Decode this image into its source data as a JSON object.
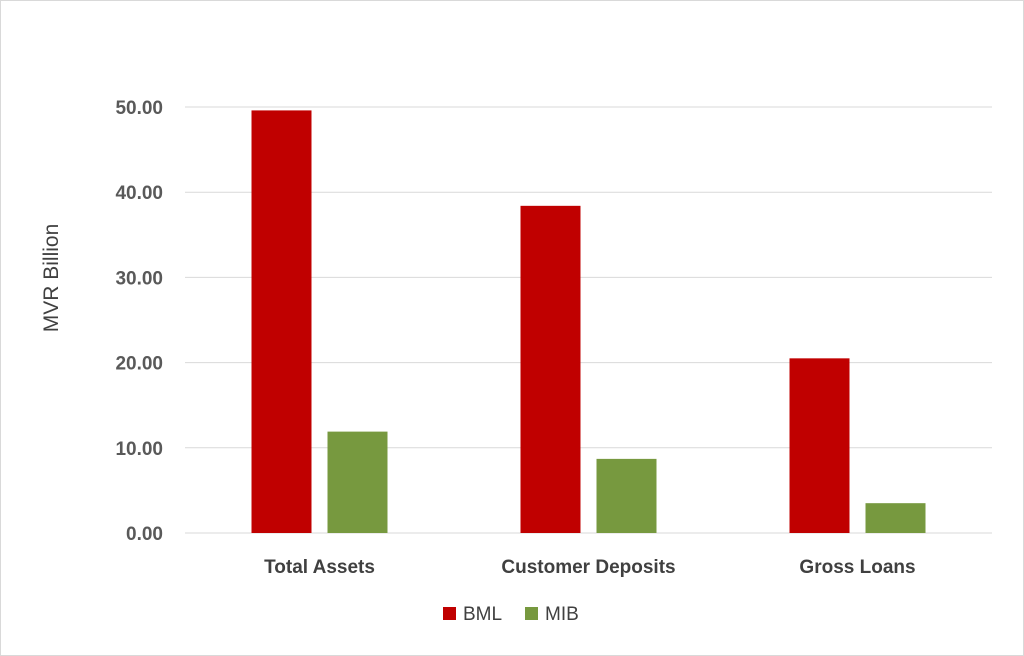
{
  "chart_data": {
    "type": "bar",
    "categories": [
      "Total Assets",
      "Customer Deposits",
      "Gross Loans"
    ],
    "series": [
      {
        "name": "BML",
        "values": [
          49.6,
          38.4,
          20.5
        ],
        "color": "#c00000"
      },
      {
        "name": "MIB",
        "values": [
          11.9,
          8.7,
          3.5
        ],
        "color": "#77993f"
      }
    ],
    "ylabel": "MVR Billion",
    "xlabel": "",
    "ylim": [
      0,
      50
    ],
    "yticks": [
      "0.00",
      "10.00",
      "20.00",
      "30.00",
      "40.00",
      "50.00"
    ],
    "grid": true,
    "legend_position": "bottom"
  }
}
